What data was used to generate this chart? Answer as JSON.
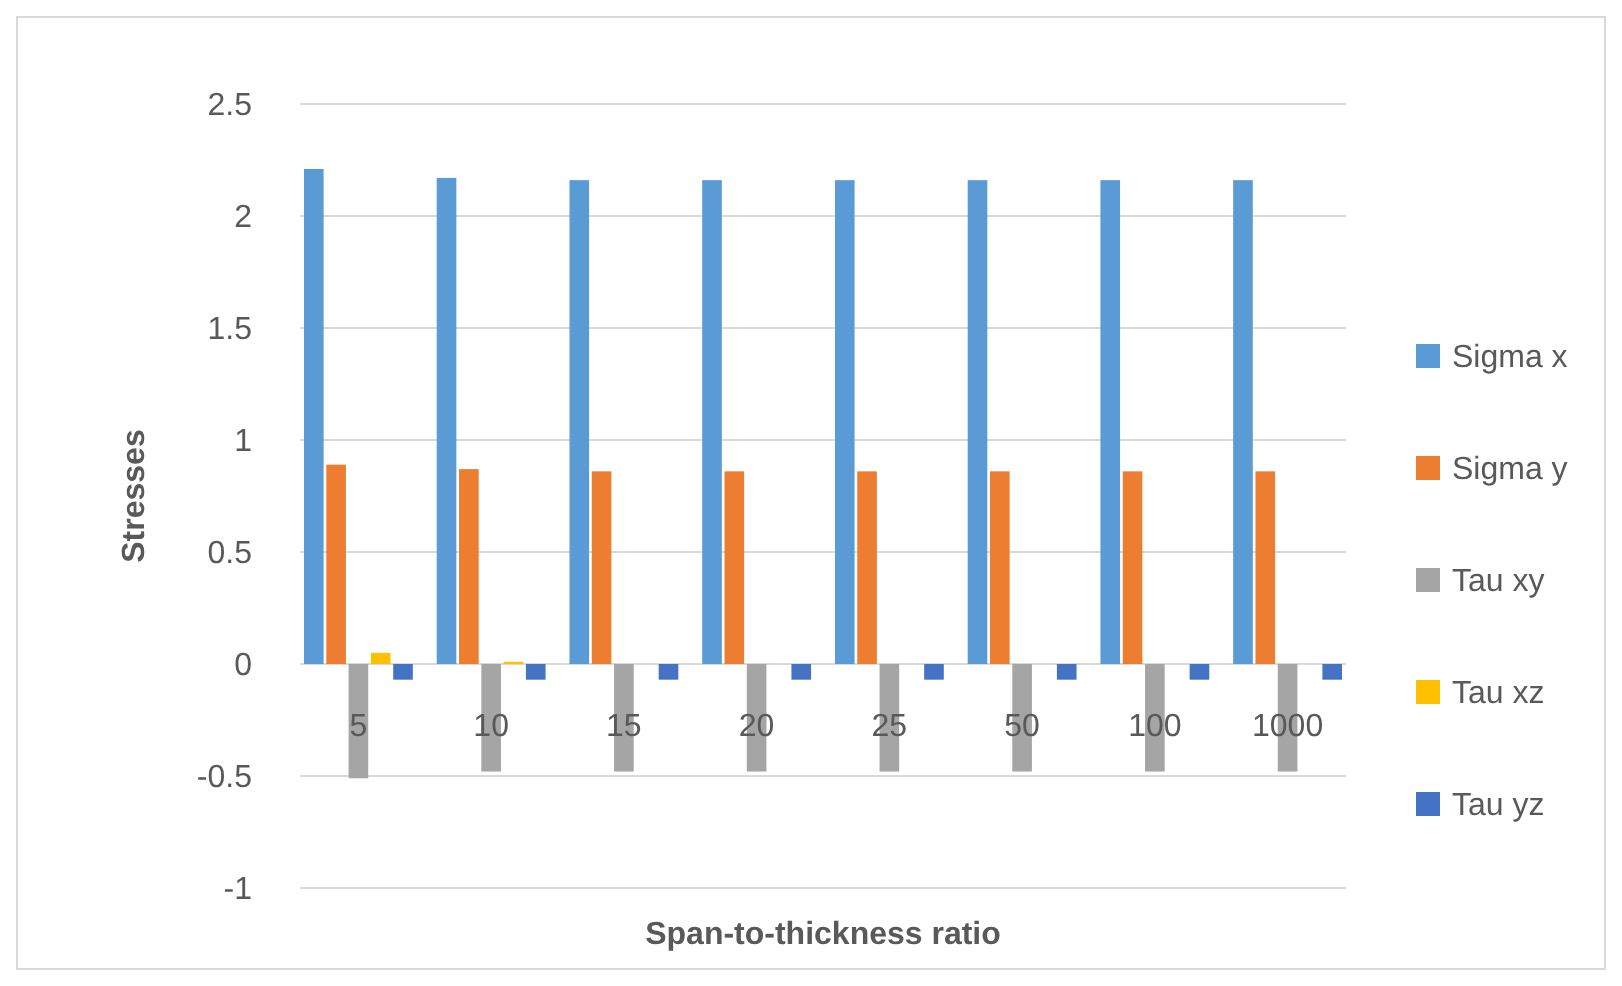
{
  "chart_data": {
    "type": "bar",
    "xlabel": "Span-to-thickness ratio",
    "ylabel": "Stresses",
    "categories": [
      "5",
      "10",
      "15",
      "20",
      "25",
      "50",
      "100",
      "1000"
    ],
    "series": [
      {
        "name": "Sigma x",
        "color": "#5b9bd5",
        "values": [
          2.21,
          2.17,
          2.16,
          2.16,
          2.16,
          2.16,
          2.16,
          2.16
        ]
      },
      {
        "name": "Sigma y",
        "color": "#ed7d31",
        "values": [
          0.89,
          0.87,
          0.86,
          0.86,
          0.86,
          0.86,
          0.86,
          0.86
        ]
      },
      {
        "name": "Tau xy",
        "color": "#a5a5a5",
        "values": [
          -0.51,
          -0.48,
          -0.48,
          -0.48,
          -0.48,
          -0.48,
          -0.48,
          -0.48
        ]
      },
      {
        "name": "Tau xz",
        "color": "#ffc000",
        "values": [
          0.05,
          0.01,
          0,
          0,
          0,
          0,
          0,
          0
        ]
      },
      {
        "name": "Tau yz",
        "color": "#4472c4",
        "values": [
          -0.07,
          -0.07,
          -0.07,
          -0.07,
          -0.07,
          -0.07,
          -0.07,
          -0.07
        ]
      }
    ],
    "ylim": [
      -1,
      2.5
    ],
    "yticks": [
      -1,
      -0.5,
      0,
      0.5,
      1,
      1.5,
      2,
      2.5
    ],
    "grid": "y",
    "legend": "right"
  }
}
